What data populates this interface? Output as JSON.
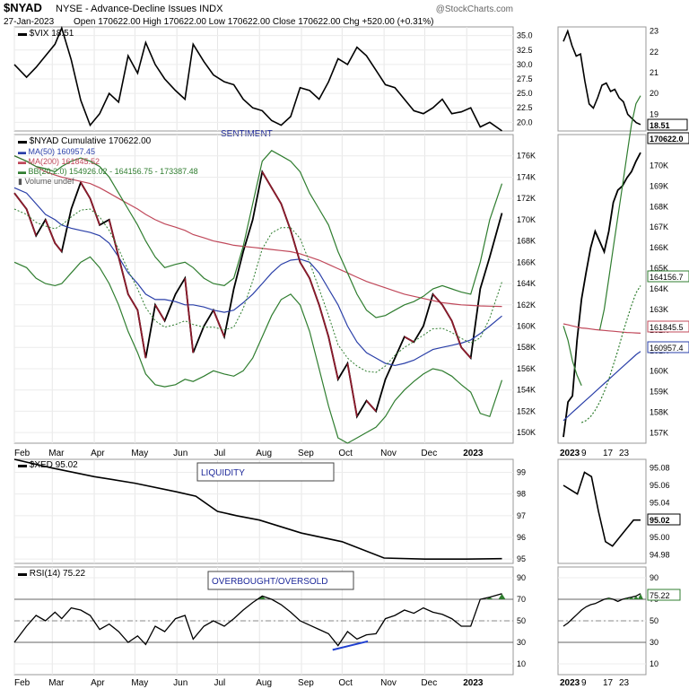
{
  "header": {
    "symbol": "$NYAD",
    "description": "NYSE - Advance-Decline Issues INDX",
    "date": "27-Jan-2023",
    "ohlc": "Open 170622.00  High 170622.00  Low 170622.00  Close 170622.00  Chg +520.00 (+0.31%)",
    "watermark": "@StockCharts.com"
  },
  "months_main": [
    "Feb",
    "Mar",
    "Apr",
    "May",
    "Jun",
    "Jul",
    "Aug",
    "Sep",
    "Oct",
    "Nov",
    "Dec",
    "2023"
  ],
  "months_zoom": [
    "2023",
    "9",
    "17",
    "23"
  ],
  "colors": {
    "price": "#000000",
    "ma50": "#2a3fa8",
    "ma200": "#c0485a",
    "bb": "#2f7d2f",
    "down": "#8b1a2b",
    "rsi_fill": "#2f7d2f",
    "box_text": "#1f2a9a",
    "divergence": "#1f3fd0"
  },
  "chart_data": [
    {
      "type": "line",
      "name": "vix-panel",
      "legend": "$VIX 18.51",
      "last_value_label": "18.51",
      "annotation": "SENTIMENT",
      "y_ticks_main": [
        "35.0",
        "32.5",
        "30.0",
        "27.5",
        "25.0",
        "22.5",
        "20.0"
      ],
      "y_ticks_zoom": [
        "23",
        "22",
        "21",
        "20",
        "19"
      ],
      "ylim": [
        18.5,
        36.5
      ],
      "ylim_zoom": [
        18.2,
        23.2
      ],
      "x": [
        "2022-02-01",
        "2022-02-10",
        "2022-02-17",
        "2022-02-24",
        "2022-03-03",
        "2022-03-08",
        "2022-03-15",
        "2022-03-22",
        "2022-03-29",
        "2022-04-05",
        "2022-04-12",
        "2022-04-19",
        "2022-04-26",
        "2022-05-03",
        "2022-05-09",
        "2022-05-16",
        "2022-05-23",
        "2022-05-31",
        "2022-06-07",
        "2022-06-13",
        "2022-06-21",
        "2022-06-28",
        "2022-07-06",
        "2022-07-13",
        "2022-07-20",
        "2022-07-27",
        "2022-08-03",
        "2022-08-10",
        "2022-08-17",
        "2022-08-24",
        "2022-08-31",
        "2022-09-07",
        "2022-09-14",
        "2022-09-21",
        "2022-09-28",
        "2022-10-05",
        "2022-10-12",
        "2022-10-19",
        "2022-10-26",
        "2022-11-02",
        "2022-11-09",
        "2022-11-16",
        "2022-11-23",
        "2022-11-30",
        "2022-12-07",
        "2022-12-14",
        "2022-12-21",
        "2022-12-28",
        "2023-01-04",
        "2023-01-11",
        "2023-01-18",
        "2023-01-27"
      ],
      "values": [
        30.0,
        27.8,
        29.5,
        31.5,
        33.5,
        36.3,
        30.8,
        23.8,
        19.5,
        21.5,
        25.0,
        23.5,
        31.5,
        28.5,
        33.8,
        30.0,
        27.5,
        25.5,
        24.0,
        33.5,
        30.5,
        28.2,
        27.0,
        26.5,
        24.0,
        22.5,
        22.0,
        20.3,
        19.5,
        21.0,
        26.0,
        25.5,
        24.0,
        27.0,
        31.0,
        30.0,
        33.0,
        31.5,
        29.0,
        26.5,
        26.0,
        24.0,
        22.0,
        21.5,
        22.5,
        24.0,
        21.5,
        21.8,
        22.5,
        19.2,
        20.0,
        18.51
      ],
      "zoom_values": [
        22.5,
        23.0,
        22.3,
        21.8,
        21.9,
        20.6,
        19.5,
        19.3,
        19.8,
        20.4,
        20.5,
        20.1,
        20.2,
        19.8,
        19.6,
        19.0,
        18.8,
        18.6,
        18.51
      ]
    },
    {
      "type": "line",
      "name": "nyad-panel",
      "legend": {
        "price": "$NYAD Cumulative 170622.00",
        "ma50": "MA(50) 160957.45",
        "ma200": "MA(200) 161845.52",
        "bb": "BB(20,2.0) 154926.02 - 164156.75 - 173387.48",
        "volume": "Volume undef"
      },
      "last_labels": [
        "170622.0",
        "164156.7",
        "161845.5",
        "160957.4"
      ],
      "y_ticks_main": [
        "176K",
        "174K",
        "172K",
        "170K",
        "168K",
        "166K",
        "164K",
        "162K",
        "160K",
        "158K",
        "156K",
        "154K",
        "152K",
        "150K"
      ],
      "y_ticks_zoom": [
        "170K",
        "169K",
        "168K",
        "167K",
        "166K",
        "165K",
        "164K",
        "163K",
        "162K",
        "161K",
        "160K",
        "159K",
        "158K",
        "157K"
      ],
      "ylim": [
        149000,
        178000
      ],
      "ylim_zoom": [
        156500,
        171500
      ],
      "x": [
        "2022-02-01",
        "2022-02-10",
        "2022-02-17",
        "2022-02-24",
        "2022-03-03",
        "2022-03-08",
        "2022-03-15",
        "2022-03-22",
        "2022-03-29",
        "2022-04-05",
        "2022-04-12",
        "2022-04-19",
        "2022-04-26",
        "2022-05-03",
        "2022-05-09",
        "2022-05-16",
        "2022-05-23",
        "2022-05-31",
        "2022-06-07",
        "2022-06-13",
        "2022-06-21",
        "2022-06-28",
        "2022-07-06",
        "2022-07-13",
        "2022-07-20",
        "2022-07-27",
        "2022-08-03",
        "2022-08-10",
        "2022-08-17",
        "2022-08-24",
        "2022-08-31",
        "2022-09-07",
        "2022-09-14",
        "2022-09-21",
        "2022-09-28",
        "2022-10-05",
        "2022-10-12",
        "2022-10-19",
        "2022-10-26",
        "2022-11-02",
        "2022-11-09",
        "2022-11-16",
        "2022-11-23",
        "2022-11-30",
        "2022-12-07",
        "2022-12-14",
        "2022-12-21",
        "2022-12-28",
        "2023-01-04",
        "2023-01-11",
        "2023-01-18",
        "2023-01-27"
      ],
      "series": [
        {
          "name": "price",
          "values": [
            172500,
            171000,
            168500,
            170000,
            167800,
            167000,
            171000,
            173500,
            172000,
            169500,
            170000,
            166500,
            163000,
            161500,
            157000,
            162000,
            160500,
            163000,
            164500,
            157500,
            160000,
            161500,
            159000,
            163500,
            167000,
            170000,
            174500,
            173000,
            171500,
            169000,
            166000,
            164500,
            162000,
            159000,
            155000,
            156500,
            151500,
            153000,
            152000,
            155000,
            157000,
            159000,
            158500,
            160000,
            163000,
            162000,
            160500,
            158000,
            157000,
            163500,
            166500,
            170622
          ]
        },
        {
          "name": "MA(50)",
          "values": [
            173000,
            172500,
            171500,
            170500,
            170000,
            169500,
            169200,
            169000,
            168800,
            168500,
            167800,
            166500,
            165000,
            164000,
            163000,
            162500,
            162500,
            162300,
            162000,
            162000,
            161800,
            161500,
            161300,
            161500,
            162200,
            163000,
            164000,
            165000,
            165800,
            166200,
            166300,
            166000,
            165000,
            163500,
            162000,
            160000,
            158500,
            157500,
            157000,
            156500,
            156300,
            156500,
            156800,
            157300,
            157800,
            158000,
            158200,
            158400,
            158700,
            159300,
            160000,
            160957
          ]
        },
        {
          "name": "MA(200)",
          "values": [
            176000,
            175500,
            175000,
            174500,
            174200,
            174000,
            173800,
            173600,
            173400,
            173000,
            172500,
            172000,
            171500,
            171000,
            170500,
            170000,
            169600,
            169300,
            169000,
            168600,
            168300,
            168000,
            167800,
            167600,
            167500,
            167400,
            167300,
            167200,
            167100,
            167000,
            166800,
            166500,
            166200,
            165800,
            165400,
            165000,
            164600,
            164200,
            163900,
            163600,
            163300,
            163000,
            162800,
            162600,
            162400,
            162200,
            162100,
            162000,
            161950,
            161900,
            161870,
            161845
          ]
        },
        {
          "name": "BB upper",
          "values": [
            176000,
            175500,
            175000,
            174800,
            174500,
            175000,
            175500,
            175800,
            175500,
            175000,
            174000,
            172500,
            171000,
            169500,
            168000,
            166500,
            165500,
            165800,
            166000,
            165500,
            164500,
            164000,
            163800,
            164500,
            167500,
            171500,
            175500,
            176500,
            176000,
            175500,
            174500,
            172500,
            171000,
            169500,
            167000,
            165000,
            163000,
            161500,
            160800,
            161000,
            161500,
            162000,
            162300,
            162800,
            163500,
            163800,
            163500,
            163200,
            163000,
            166000,
            170000,
            173387
          ]
        },
        {
          "name": "BB lower",
          "values": [
            166000,
            165500,
            164500,
            164000,
            163800,
            164000,
            165000,
            166000,
            166500,
            165500,
            164000,
            162000,
            159500,
            157500,
            155500,
            154500,
            154300,
            154500,
            155000,
            154800,
            155300,
            155800,
            155500,
            155300,
            155800,
            157000,
            159000,
            161000,
            162500,
            163000,
            162000,
            159500,
            156000,
            152500,
            149500,
            149000,
            149500,
            150000,
            150500,
            151500,
            153000,
            154000,
            154800,
            155500,
            156000,
            155800,
            155300,
            154500,
            153800,
            151800,
            151500,
            154926
          ]
        }
      ],
      "zoom_series": [
        {
          "name": "price",
          "values": [
            156800,
            158500,
            158800,
            161500,
            163500,
            164800,
            166000,
            166800,
            166300,
            165800,
            166800,
            168200,
            168800,
            169000,
            169400,
            169700,
            170200,
            170622
          ]
        },
        {
          "name": "MA(50)",
          "values": [
            157600,
            157800,
            158000,
            158200,
            158400,
            158600,
            158800,
            159000,
            159200,
            159400,
            159600,
            159800,
            160000,
            160200,
            160400,
            160600,
            160800,
            160957
          ]
        },
        {
          "name": "MA(200)",
          "values": [
            162300,
            162250,
            162200,
            162150,
            162100,
            162080,
            162050,
            162020,
            162000,
            161980,
            161960,
            161940,
            161920,
            161900,
            161880,
            161870,
            161860,
            161845
          ]
        },
        {
          "name": "BB upper",
          "values": [
            162000,
            163000,
            164500,
            166000,
            167500,
            169000,
            170500,
            172000,
            173000,
            173387
          ]
        },
        {
          "name": "BB mid",
          "values": [
            157500,
            157600,
            157800,
            158100,
            158500,
            159000,
            159600,
            160300,
            161000,
            161800,
            162500,
            163200,
            163800,
            164156
          ]
        },
        {
          "name": "BB lower",
          "values": [
            162200,
            161500,
            160500,
            159800,
            159300
          ]
        }
      ]
    },
    {
      "type": "line",
      "name": "xed-panel",
      "legend": "$XED 95.02",
      "last_value_label": "95.02",
      "annotation": "LIQUIDITY",
      "y_ticks_main": [
        "99",
        "98",
        "97",
        "96",
        "95"
      ],
      "y_ticks_zoom": [
        "95.08",
        "95.06",
        "95.04",
        "95.02",
        "95.00",
        "94.98"
      ],
      "ylim": [
        94.8,
        99.6
      ],
      "ylim_zoom": [
        94.97,
        95.09
      ],
      "x": [
        "2022-02-01",
        "2022-03-01",
        "2022-04-01",
        "2022-05-01",
        "2022-06-01",
        "2022-06-15",
        "2022-07-01",
        "2022-07-15",
        "2022-08-01",
        "2022-09-01",
        "2022-10-01",
        "2022-11-01",
        "2022-12-01",
        "2023-01-01",
        "2023-01-27"
      ],
      "values": [
        99.6,
        99.2,
        98.8,
        98.5,
        98.1,
        97.9,
        97.2,
        97.0,
        96.8,
        96.2,
        95.8,
        95.05,
        95.0,
        95.0,
        95.02
      ],
      "zoom_values": [
        95.06,
        95.055,
        95.05,
        95.075,
        95.07,
        95.03,
        94.995,
        94.99,
        95.0,
        95.01,
        95.02,
        95.02
      ]
    },
    {
      "type": "line",
      "name": "rsi-panel",
      "legend": "RSI(14) 75.22",
      "last_value_label": "75.22",
      "annotation": "OVERBOUGHT/OVERSOLD",
      "y_ticks": [
        "90",
        "70",
        "50",
        "30",
        "10"
      ],
      "ylim": [
        0,
        100
      ],
      "x": [
        "2022-02-01",
        "2022-02-10",
        "2022-02-17",
        "2022-02-24",
        "2022-03-03",
        "2022-03-08",
        "2022-03-15",
        "2022-03-22",
        "2022-03-29",
        "2022-04-05",
        "2022-04-12",
        "2022-04-19",
        "2022-04-26",
        "2022-05-03",
        "2022-05-09",
        "2022-05-16",
        "2022-05-23",
        "2022-05-31",
        "2022-06-07",
        "2022-06-13",
        "2022-06-21",
        "2022-06-28",
        "2022-07-06",
        "2022-07-13",
        "2022-07-20",
        "2022-07-27",
        "2022-08-03",
        "2022-08-10",
        "2022-08-17",
        "2022-08-24",
        "2022-08-31",
        "2022-09-07",
        "2022-09-14",
        "2022-09-21",
        "2022-09-28",
        "2022-10-05",
        "2022-10-12",
        "2022-10-19",
        "2022-10-26",
        "2022-11-02",
        "2022-11-09",
        "2022-11-16",
        "2022-11-23",
        "2022-11-30",
        "2022-12-07",
        "2022-12-14",
        "2022-12-21",
        "2022-12-28",
        "2023-01-04",
        "2023-01-11",
        "2023-01-18",
        "2023-01-27"
      ],
      "values": [
        30,
        45,
        55,
        50,
        58,
        52,
        62,
        60,
        55,
        42,
        47,
        40,
        30,
        36,
        28,
        45,
        40,
        52,
        55,
        33,
        45,
        50,
        45,
        52,
        60,
        67,
        73,
        70,
        65,
        58,
        50,
        46,
        42,
        38,
        27,
        40,
        33,
        37,
        38,
        52,
        55,
        60,
        57,
        62,
        58,
        56,
        52,
        45,
        45,
        70,
        72,
        75.22
      ],
      "zoom_values": [
        45,
        48,
        52,
        56,
        60,
        63,
        65,
        66,
        68,
        70,
        71,
        70,
        68,
        70,
        71,
        72,
        73,
        75.22
      ]
    }
  ]
}
